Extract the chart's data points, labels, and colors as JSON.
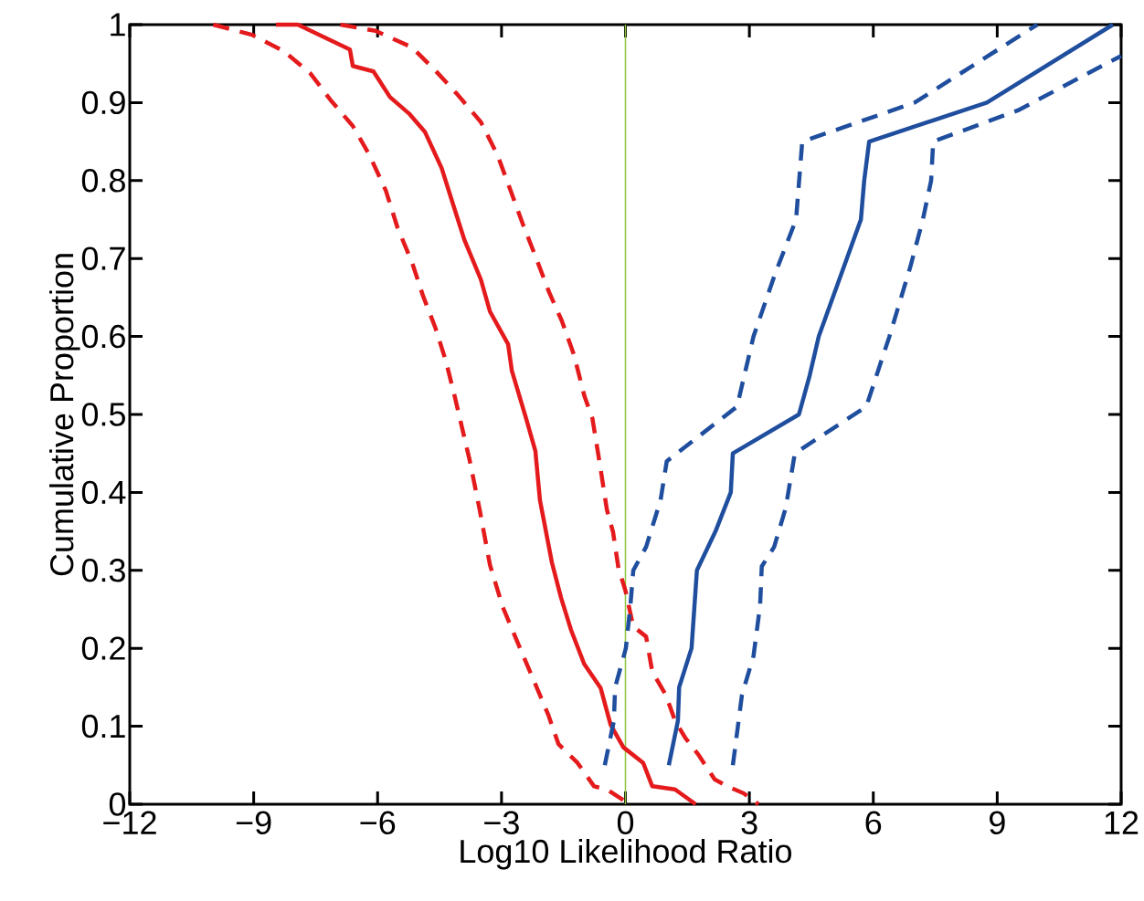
{
  "chart_data": {
    "type": "line",
    "xlabel": "Log10 Likelihood Ratio",
    "ylabel": "Cumulative Proportion",
    "xlim": [
      -12,
      12
    ],
    "xticks": [
      {
        "value": -12,
        "label": "−12"
      },
      {
        "value": -9,
        "label": "−9"
      },
      {
        "value": -6,
        "label": "−6"
      },
      {
        "value": -3,
        "label": "−3"
      },
      0,
      3,
      6,
      9,
      12
    ],
    "ylim": [
      0,
      1
    ],
    "yticks": [
      0,
      0.1,
      0.2,
      0.3,
      0.4,
      0.5,
      0.6,
      0.7,
      0.8,
      0.9,
      1
    ],
    "ref_lines": [
      {
        "axis": "x",
        "value": 0,
        "color": "#8cc63f"
      }
    ],
    "series": [
      {
        "color": "#e41a1c",
        "line_style": "dashed",
        "x": [
          -9.98,
          -9.04,
          -8.27,
          -7.62,
          -7.15,
          -6.6,
          -6.2,
          -5.8,
          -5.52,
          -5.16,
          -4.9,
          -4.6,
          -4.35,
          -4.15,
          -3.77,
          -3.53,
          -3.28,
          -2.97,
          -2.67,
          -2.27,
          -1.87,
          -1.62,
          -1.16,
          -0.76,
          -0.45,
          0.1
        ],
        "values": [
          1,
          0.987,
          0.966,
          0.937,
          0.904,
          0.87,
          0.833,
          0.787,
          0.74,
          0.694,
          0.652,
          0.611,
          0.569,
          0.527,
          0.441,
          0.378,
          0.307,
          0.253,
          0.215,
          0.165,
          0.115,
          0.077,
          0.053,
          0.023,
          0.019,
          0
        ]
      },
      {
        "color": "#e41a1c",
        "line_style": "solid",
        "x": [
          -8.46,
          -7.93,
          -6.67,
          -6.6,
          -6.1,
          -5.7,
          -5.24,
          -4.85,
          -4.45,
          -4.2,
          -3.9,
          -3.5,
          -3.28,
          -2.84,
          -2.75,
          -2.4,
          -2.18,
          -2.07,
          -1.78,
          -1.56,
          -1.32,
          -1.0,
          -0.6,
          -0.36,
          -0.05,
          0.43,
          0.65,
          1.2,
          1.7
        ],
        "values": [
          1,
          1,
          0.968,
          0.947,
          0.94,
          0.907,
          0.886,
          0.862,
          0.816,
          0.774,
          0.724,
          0.673,
          0.632,
          0.59,
          0.556,
          0.494,
          0.453,
          0.39,
          0.31,
          0.265,
          0.224,
          0.18,
          0.149,
          0.102,
          0.073,
          0.053,
          0.023,
          0.019,
          0
        ]
      },
      {
        "color": "#e41a1c",
        "line_style": "dashed",
        "x": [
          -6.9,
          -6.05,
          -5.17,
          -4.6,
          -4.06,
          -3.5,
          -3.1,
          -2.8,
          -2.49,
          -2.18,
          -1.85,
          -1.54,
          -1.25,
          -0.99,
          -0.8,
          -0.61,
          -0.45,
          -0.3,
          -0.17,
          0.0,
          0.19,
          0.5,
          0.65,
          0.98,
          1.2,
          1.45,
          1.76,
          2.16,
          2.47,
          2.86,
          3.22
        ],
        "values": [
          1,
          0.992,
          0.971,
          0.941,
          0.91,
          0.875,
          0.833,
          0.79,
          0.745,
          0.703,
          0.657,
          0.62,
          0.577,
          0.523,
          0.495,
          0.433,
          0.378,
          0.349,
          0.303,
          0.274,
          0.228,
          0.215,
          0.17,
          0.14,
          0.107,
          0.085,
          0.064,
          0.032,
          0.023,
          0.014,
          0
        ]
      },
      {
        "color": "#1f4e9e",
        "line_style": "dashed",
        "x": [
          -0.5,
          -0.28,
          -0.25,
          0.01,
          0.12,
          0.19,
          0.5,
          0.85,
          1.0,
          2.7,
          3.1,
          3.62,
          4.13,
          4.28,
          7.0,
          9.97
        ],
        "values": [
          0.05,
          0.107,
          0.15,
          0.2,
          0.255,
          0.3,
          0.33,
          0.39,
          0.44,
          0.51,
          0.6,
          0.68,
          0.75,
          0.85,
          0.9,
          1
        ]
      },
      {
        "color": "#1f4e9e",
        "line_style": "solid",
        "x": [
          1.05,
          1.27,
          1.3,
          1.6,
          1.73,
          2.18,
          2.55,
          2.6,
          4.2,
          4.46,
          4.68,
          5.36,
          5.7,
          5.78,
          5.9,
          8.75,
          11.8
        ],
        "values": [
          0.05,
          0.107,
          0.15,
          0.2,
          0.3,
          0.35,
          0.4,
          0.45,
          0.5,
          0.55,
          0.6,
          0.7,
          0.75,
          0.8,
          0.85,
          0.9,
          1
        ]
      },
      {
        "color": "#1f4e9e",
        "line_style": "dashed",
        "x": [
          2.6,
          2.82,
          3.1,
          3.26,
          3.3,
          3.6,
          3.88,
          4.1,
          5.83,
          6.39,
          6.9,
          7.2,
          7.4,
          7.45,
          9.5,
          12
        ],
        "values": [
          0.05,
          0.14,
          0.19,
          0.255,
          0.305,
          0.33,
          0.38,
          0.45,
          0.51,
          0.6,
          0.69,
          0.75,
          0.8,
          0.85,
          0.89,
          0.96
        ]
      }
    ]
  }
}
